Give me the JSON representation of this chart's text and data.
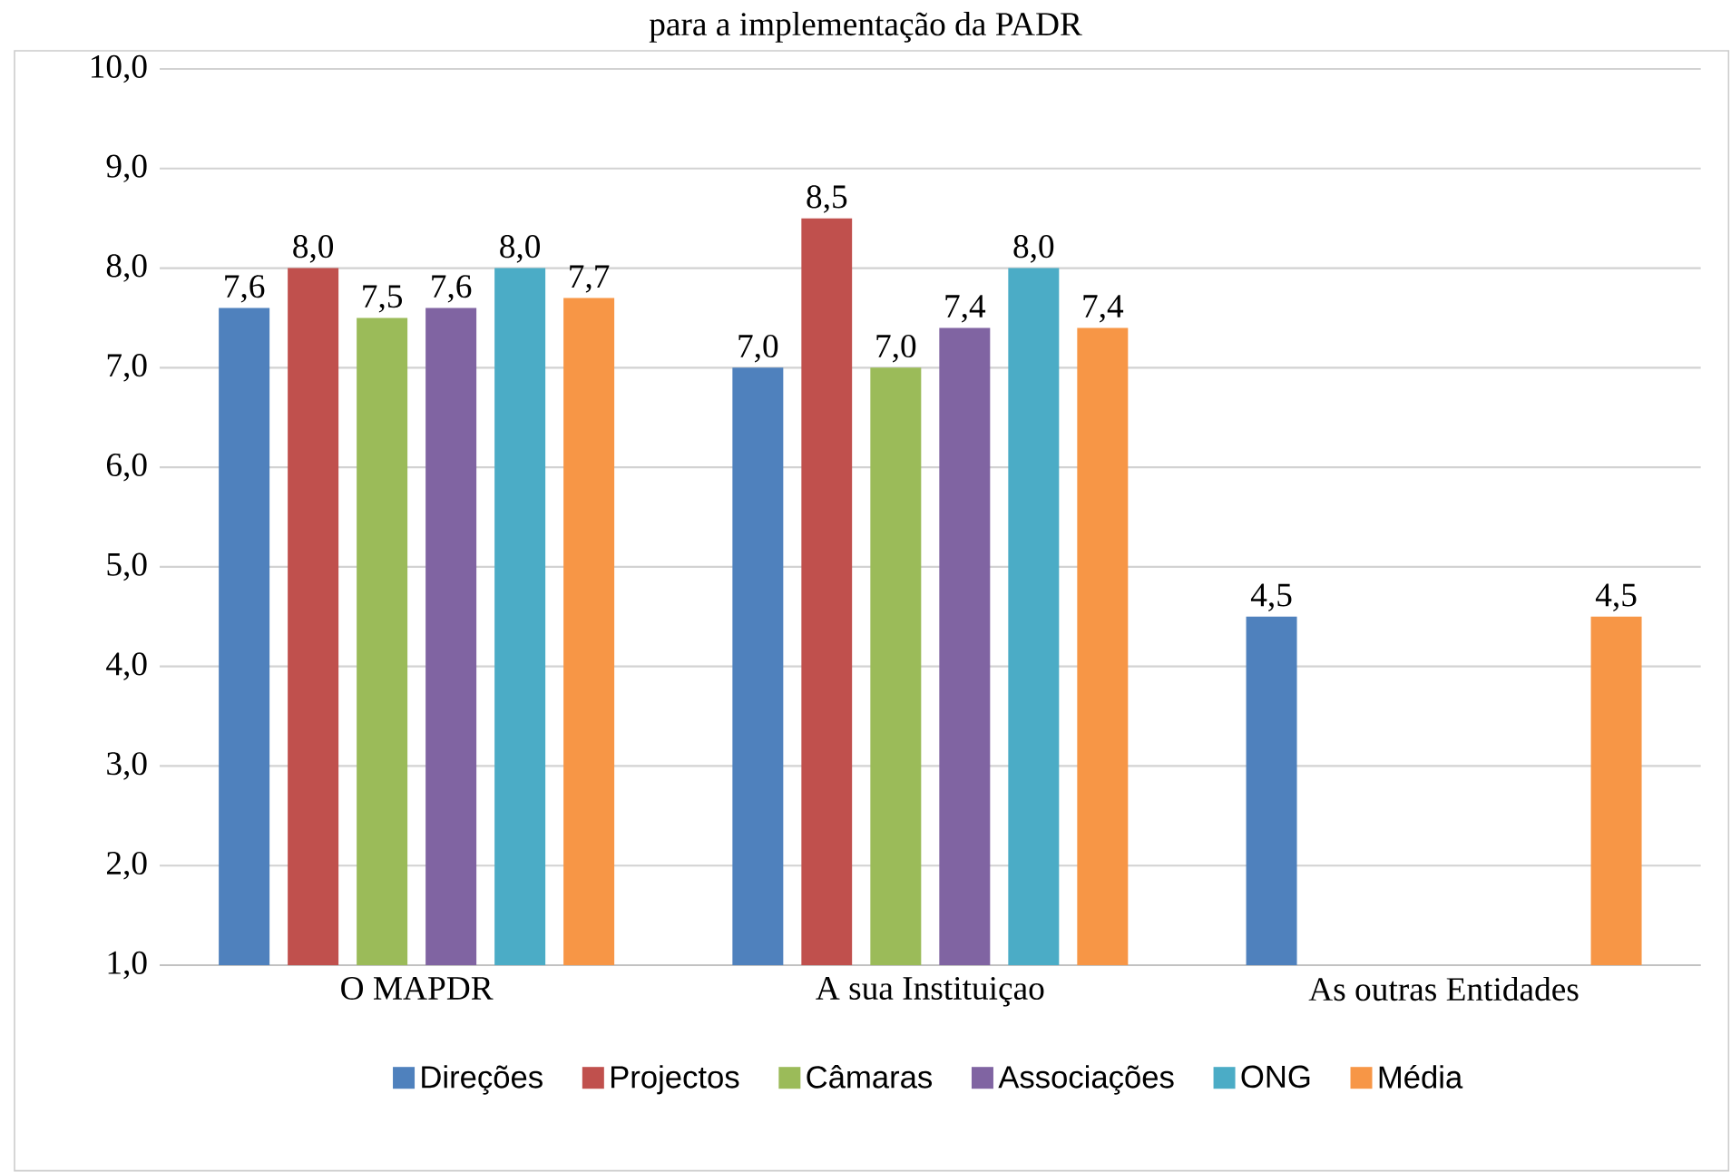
{
  "chart_data": {
    "type": "bar",
    "title": "para a implementação da PADR",
    "categories": [
      "O MAPDR",
      "A sua Instituiçao",
      "As outras Entidades"
    ],
    "series": [
      {
        "name": "Direções",
        "color": "#4f81bd",
        "values": [
          7.6,
          7.0,
          4.5
        ],
        "value_labels": [
          "7,6",
          "7,0",
          "4,5"
        ]
      },
      {
        "name": "Projectos",
        "color": "#c0504d",
        "values": [
          8.0,
          8.5,
          null
        ],
        "value_labels": [
          "8,0",
          "8,5",
          null
        ]
      },
      {
        "name": "Câmaras",
        "color": "#9bbb59",
        "values": [
          7.5,
          7.0,
          null
        ],
        "value_labels": [
          "7,5",
          "7,0",
          null
        ]
      },
      {
        "name": "Associações",
        "color": "#8064a2",
        "values": [
          7.6,
          7.4,
          null
        ],
        "value_labels": [
          "7,6",
          "7,4",
          null
        ]
      },
      {
        "name": "ONG",
        "color": "#4bacc6",
        "values": [
          8.0,
          8.0,
          null
        ],
        "value_labels": [
          "8,0",
          "8,0",
          null
        ]
      },
      {
        "name": "Média",
        "color": "#f79646",
        "values": [
          7.7,
          7.4,
          4.5
        ],
        "value_labels": [
          "7,7",
          "7,4",
          "4,5"
        ]
      }
    ],
    "ylim": [
      1,
      10
    ],
    "yticks": [
      {
        "value": 1,
        "label": "1,0"
      },
      {
        "value": 2,
        "label": "2,0"
      },
      {
        "value": 3,
        "label": "3,0"
      },
      {
        "value": 4,
        "label": "4,0"
      },
      {
        "value": 5,
        "label": "5,0"
      },
      {
        "value": 6,
        "label": "6,0"
      },
      {
        "value": 7,
        "label": "7,0"
      },
      {
        "value": 8,
        "label": "8,0"
      },
      {
        "value": 9,
        "label": "9,0"
      },
      {
        "value": 10,
        "label": "10,0"
      }
    ],
    "grid": "y",
    "legend": "bottom"
  }
}
